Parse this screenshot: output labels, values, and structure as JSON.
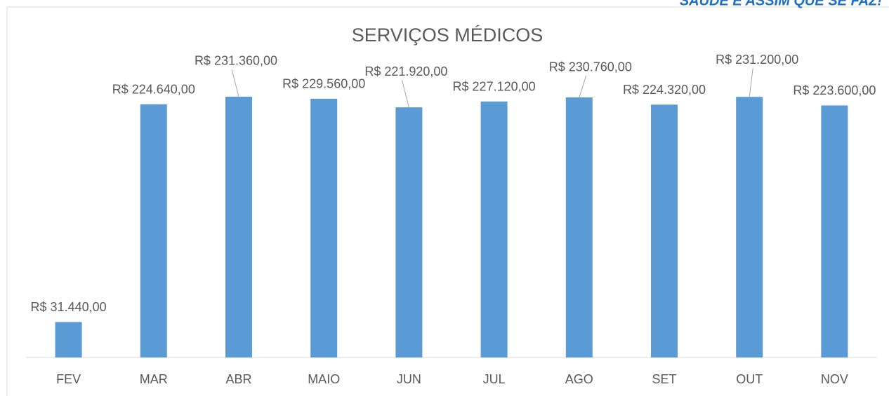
{
  "chart_data": {
    "type": "bar",
    "title": "SERVIÇOS MÉDICOS",
    "banner": "SAÚDE É ASSIM QUE SE FAZ!",
    "categories": [
      "FEV",
      "MAR",
      "ABR",
      "MAIO",
      "JUN",
      "JUL",
      "AGO",
      "SET",
      "OUT",
      "NOV"
    ],
    "values": [
      31440,
      224640,
      231360,
      229560,
      221920,
      227120,
      230760,
      224320,
      231200,
      223600
    ],
    "value_labels": [
      "R$ 31.440,00",
      "R$ 224.640,00",
      "R$ 231.360,00",
      "R$ 229.560,00",
      "R$ 221.920,00",
      "R$ 227.120,00",
      "R$ 230.760,00",
      "R$ 224.320,00",
      "R$ 231.200,00",
      "R$ 223.600,00"
    ],
    "color": "#5b9bd5",
    "ylim": [
      0,
      250000
    ],
    "grid": false
  }
}
